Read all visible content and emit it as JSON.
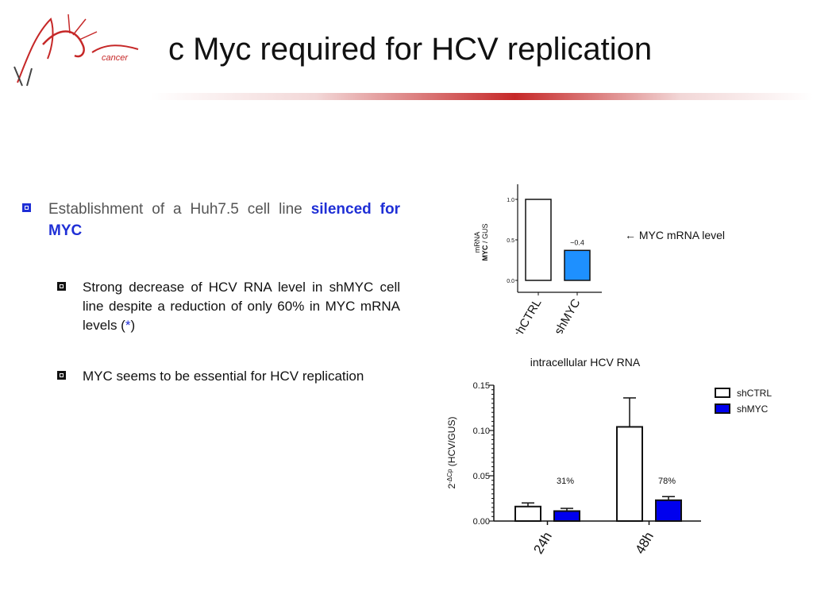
{
  "header": {
    "title": "c Myc required for HCV replication",
    "logo_text": "cancer"
  },
  "bullets": {
    "main_text": "Establishment of a Huh7.5 cell line",
    "main_emphasis": "silenced for MYC",
    "sub1_text": "Strong decrease of HCV RNA level in shMYC cell line despite a reduction of only 60% in MYC mRNA levels (",
    "sub1_star": "*",
    "sub1_close": ")",
    "sub2_text": "MYC seems to be essential for HCV replication"
  },
  "chart_data": [
    {
      "type": "bar",
      "ylabel_line1": "mRNA",
      "ylabel_bold": "MYC",
      "ylabel_rest": " / GUS",
      "categories": [
        "shCTRL",
        "shMYC"
      ],
      "values": [
        1.0,
        0.37
      ],
      "colors": [
        "#ffffff",
        "#1e90ff"
      ],
      "ylim": [
        0,
        1.0
      ],
      "yticks": [
        0.0,
        0.5,
        1.0
      ],
      "ytick_labels": [
        "0.0",
        "0.5",
        "1.0"
      ],
      "data_label": "~0.4",
      "annotation": "← MYC mRNA level"
    },
    {
      "type": "bar",
      "title": "intracellular HCV RNA",
      "ylabel_prefix": "2",
      "ylabel_sup": "-ΔCp",
      "ylabel_suffix": " (HCV/GUS)",
      "categories": [
        "24h",
        "48h"
      ],
      "series": [
        {
          "name": "shCTRL",
          "values": [
            0.016,
            0.104
          ],
          "errors": [
            0.004,
            0.032
          ],
          "color": "#ffffff"
        },
        {
          "name": "shMYC",
          "values": [
            0.011,
            0.023
          ],
          "errors": [
            0.003,
            0.004
          ],
          "color": "#0000ee"
        }
      ],
      "ylim": [
        0,
        0.15
      ],
      "yticks": [
        0.0,
        0.05,
        0.1,
        0.15
      ],
      "ytick_labels": [
        "0.00",
        "0.05",
        "0.10",
        "0.15"
      ],
      "annotations": [
        "31%",
        "78%"
      ]
    }
  ]
}
